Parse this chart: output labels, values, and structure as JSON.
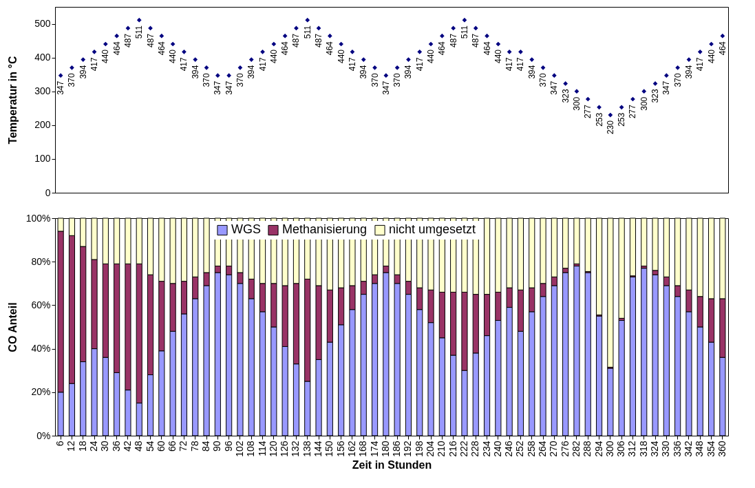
{
  "chart_data": [
    {
      "type": "scatter",
      "ylabel": "Temperatur in °C",
      "categories": [
        "6",
        "12",
        "18",
        "24",
        "30",
        "36",
        "42",
        "48",
        "54",
        "60",
        "66",
        "72",
        "78",
        "84",
        "90",
        "96",
        "102",
        "108",
        "114",
        "120",
        "126",
        "132",
        "138",
        "144",
        "150",
        "156",
        "162",
        "168",
        "174",
        "180",
        "186",
        "192",
        "198",
        "204",
        "210",
        "216",
        "222",
        "228",
        "234",
        "240",
        "246",
        "252",
        "258",
        "264",
        "270",
        "276",
        "282",
        "288",
        "294",
        "300",
        "306",
        "312",
        "318",
        "324",
        "330",
        "336",
        "342",
        "348",
        "354",
        "360"
      ],
      "series": [
        {
          "color": "#000080",
          "values": [
            347,
            370,
            394,
            417,
            440,
            464,
            487,
            511,
            487,
            464,
            440,
            417,
            394,
            370,
            347,
            347,
            370,
            394,
            417,
            440,
            464,
            487,
            511,
            487,
            464,
            440,
            417,
            394,
            370,
            347,
            370,
            394,
            417,
            440,
            464,
            487,
            511,
            487,
            464,
            440,
            417,
            417,
            394,
            370,
            347,
            323,
            300,
            277,
            253,
            230,
            253,
            277,
            300,
            323,
            347,
            370,
            394,
            417,
            440,
            464
          ]
        }
      ],
      "ylim": [
        0,
        550
      ],
      "yticks": [
        0,
        100,
        200,
        300,
        400,
        500
      ],
      "marker": "diamond",
      "data_labels": true,
      "tick_labels": "y",
      "grid": false
    },
    {
      "type": "bar",
      "stacked": true,
      "xlabel": "Zeit in Stunden",
      "ylabel": "CO Anteil",
      "categories": [
        "6",
        "12",
        "18",
        "24",
        "30",
        "36",
        "42",
        "48",
        "54",
        "60",
        "66",
        "72",
        "78",
        "84",
        "90",
        "96",
        "102",
        "108",
        "114",
        "120",
        "126",
        "132",
        "138",
        "144",
        "150",
        "156",
        "162",
        "168",
        "174",
        "180",
        "186",
        "192",
        "198",
        "204",
        "210",
        "216",
        "222",
        "228",
        "234",
        "240",
        "246",
        "252",
        "258",
        "264",
        "270",
        "276",
        "282",
        "288",
        "294",
        "300",
        "306",
        "312",
        "318",
        "324",
        "330",
        "336",
        "342",
        "348",
        "354",
        "360"
      ],
      "series": [
        {
          "name": "WGS",
          "color": "#9999ff",
          "values": [
            20,
            24,
            34,
            40,
            36,
            29,
            21,
            15,
            28,
            39,
            48,
            56,
            63,
            69,
            75,
            74,
            70,
            63,
            57,
            50,
            41,
            33,
            25,
            35,
            43,
            51,
            58,
            65,
            70,
            75,
            70,
            65,
            58,
            52,
            45,
            37,
            30,
            38,
            46,
            53,
            59,
            48,
            57,
            64,
            69,
            75,
            78,
            75,
            55,
            31,
            53,
            73,
            77,
            74,
            69,
            64,
            57,
            50,
            43,
            36
          ]
        },
        {
          "name": "Methanisierung",
          "color": "#993366",
          "values": [
            74,
            68,
            53,
            41,
            43,
            50,
            58,
            64,
            46,
            32,
            22,
            15,
            10,
            6,
            3,
            4,
            5,
            9,
            13,
            20,
            28,
            37,
            47,
            34,
            24,
            17,
            11,
            6,
            4,
            3,
            4,
            6,
            10,
            15,
            21,
            29,
            36,
            27,
            19,
            13,
            9,
            19,
            11,
            6,
            4,
            2,
            1,
            0.5,
            0.5,
            0.5,
            1,
            0.5,
            1,
            2,
            4,
            5,
            10,
            14,
            20,
            27
          ]
        },
        {
          "name": "nicht umgesetzt",
          "color": "#ffffcc",
          "values": [
            6,
            8,
            13,
            19,
            21,
            21,
            21,
            21,
            26,
            29,
            30,
            29,
            27,
            25,
            22,
            22,
            25,
            28,
            30,
            30,
            31,
            30,
            28,
            31,
            33,
            32,
            31,
            29,
            26,
            22,
            26,
            29,
            32,
            33,
            34,
            34,
            34,
            35,
            35,
            34,
            32,
            33,
            32,
            30,
            27,
            23,
            21,
            24.5,
            44.5,
            68.5,
            46,
            26.5,
            22,
            24,
            27,
            31,
            33,
            36,
            37,
            37
          ]
        }
      ],
      "ylim": [
        0,
        100
      ],
      "yticks": [
        {
          "value": 0,
          "label": "0%"
        },
        {
          "value": 20,
          "label": "20%"
        },
        {
          "value": 40,
          "label": "40%"
        },
        {
          "value": 60,
          "label": "60%"
        },
        {
          "value": 80,
          "label": "80%"
        },
        {
          "value": 100,
          "label": "100%"
        }
      ],
      "legend": "top",
      "grid": false
    }
  ]
}
